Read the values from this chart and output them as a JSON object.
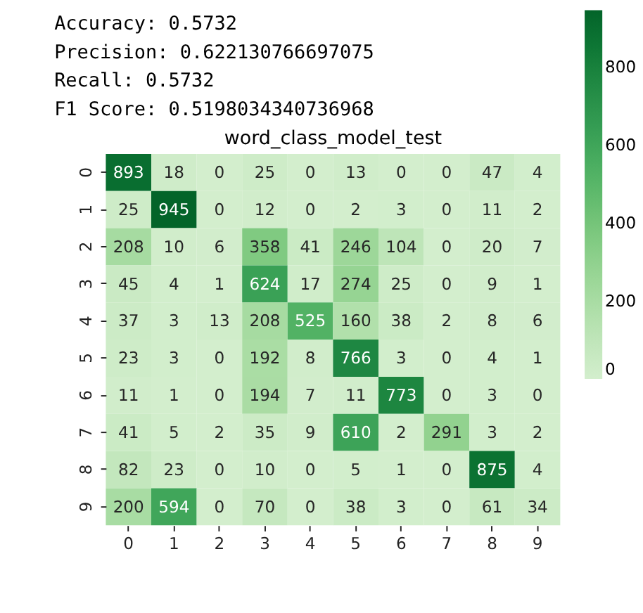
{
  "chart_data": {
    "type": "heatmap",
    "title": "word_class_model_test",
    "annotations": [
      "Accuracy: 0.5732",
      "Precision: 0.622130766697075",
      "Recall: 0.5732",
      "F1 Score: 0.5198034340736968"
    ],
    "categories": [
      "0",
      "1",
      "2",
      "3",
      "4",
      "5",
      "6",
      "7",
      "8",
      "9"
    ],
    "y_categories": [
      "0",
      "1",
      "2",
      "3",
      "4",
      "5",
      "6",
      "7",
      "8",
      "9"
    ],
    "cells": [
      [
        893,
        18,
        0,
        25,
        0,
        13,
        0,
        0,
        47,
        4
      ],
      [
        25,
        945,
        0,
        12,
        0,
        2,
        3,
        0,
        11,
        2
      ],
      [
        208,
        10,
        6,
        358,
        41,
        246,
        104,
        0,
        20,
        7
      ],
      [
        45,
        4,
        1,
        624,
        17,
        274,
        25,
        0,
        9,
        1
      ],
      [
        37,
        3,
        13,
        208,
        525,
        160,
        38,
        2,
        8,
        6
      ],
      [
        23,
        3,
        0,
        192,
        8,
        766,
        3,
        0,
        4,
        1
      ],
      [
        11,
        1,
        0,
        194,
        7,
        11,
        773,
        0,
        3,
        0
      ],
      [
        41,
        5,
        2,
        35,
        9,
        610,
        2,
        291,
        3,
        2
      ],
      [
        82,
        23,
        0,
        10,
        0,
        5,
        1,
        0,
        875,
        4
      ],
      [
        200,
        594,
        0,
        70,
        0,
        38,
        3,
        0,
        61,
        34
      ]
    ],
    "clim": [
      0,
      945
    ],
    "cticks": [
      0,
      200,
      400,
      600,
      800
    ],
    "data_labels": true
  }
}
